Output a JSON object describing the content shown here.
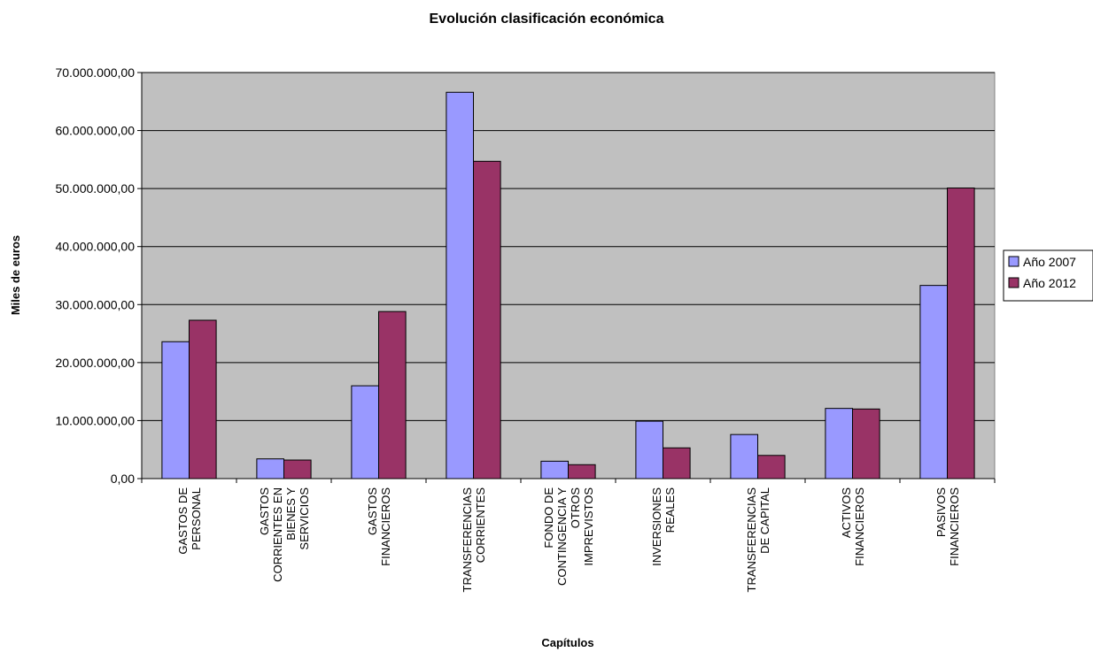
{
  "chart_data": {
    "type": "bar",
    "title": "Evolución clasificación económica",
    "xlabel": "Capítulos",
    "ylabel": "Miles de euros",
    "ylim": [
      0,
      70000000
    ],
    "y_tick_labels": [
      "0,00",
      "10.000.000,00",
      "20.000.000,00",
      "30.000.000,00",
      "40.000.000,00",
      "50.000.000,00",
      "60.000.000,00",
      "70.000.000,00"
    ],
    "grid": true,
    "legend_position": "right",
    "categories": [
      [
        "GASTOS DE",
        "PERSONAL"
      ],
      [
        "GASTOS",
        "CORRIENTES EN",
        "BIENES Y",
        "SERVICIOS"
      ],
      [
        "GASTOS",
        "FINANCIEROS"
      ],
      [
        "TRANSFERENCIAS",
        "CORRIENTES"
      ],
      [
        "FONDO DE",
        "CONTINGENCIA Y",
        "OTROS",
        "IMPREVISTOS"
      ],
      [
        "INVERSIONES",
        "REALES"
      ],
      [
        "TRANSFERENCIAS",
        "DE CAPITAL"
      ],
      [
        "ACTIVOS",
        "FINANCIEROS"
      ],
      [
        "PASIVOS",
        "FINANCIEROS"
      ]
    ],
    "series": [
      {
        "name": "Año 2007",
        "color": "#9999ff",
        "values": [
          23600000,
          3400000,
          16000000,
          66600000,
          3000000,
          9900000,
          7600000,
          12100000,
          33300000
        ]
      },
      {
        "name": "Año 2012",
        "color": "#993366",
        "values": [
          27300000,
          3200000,
          28800000,
          54700000,
          2400000,
          5300000,
          4000000,
          12000000,
          50100000
        ]
      }
    ],
    "plot_background": "#c0c0c0"
  }
}
